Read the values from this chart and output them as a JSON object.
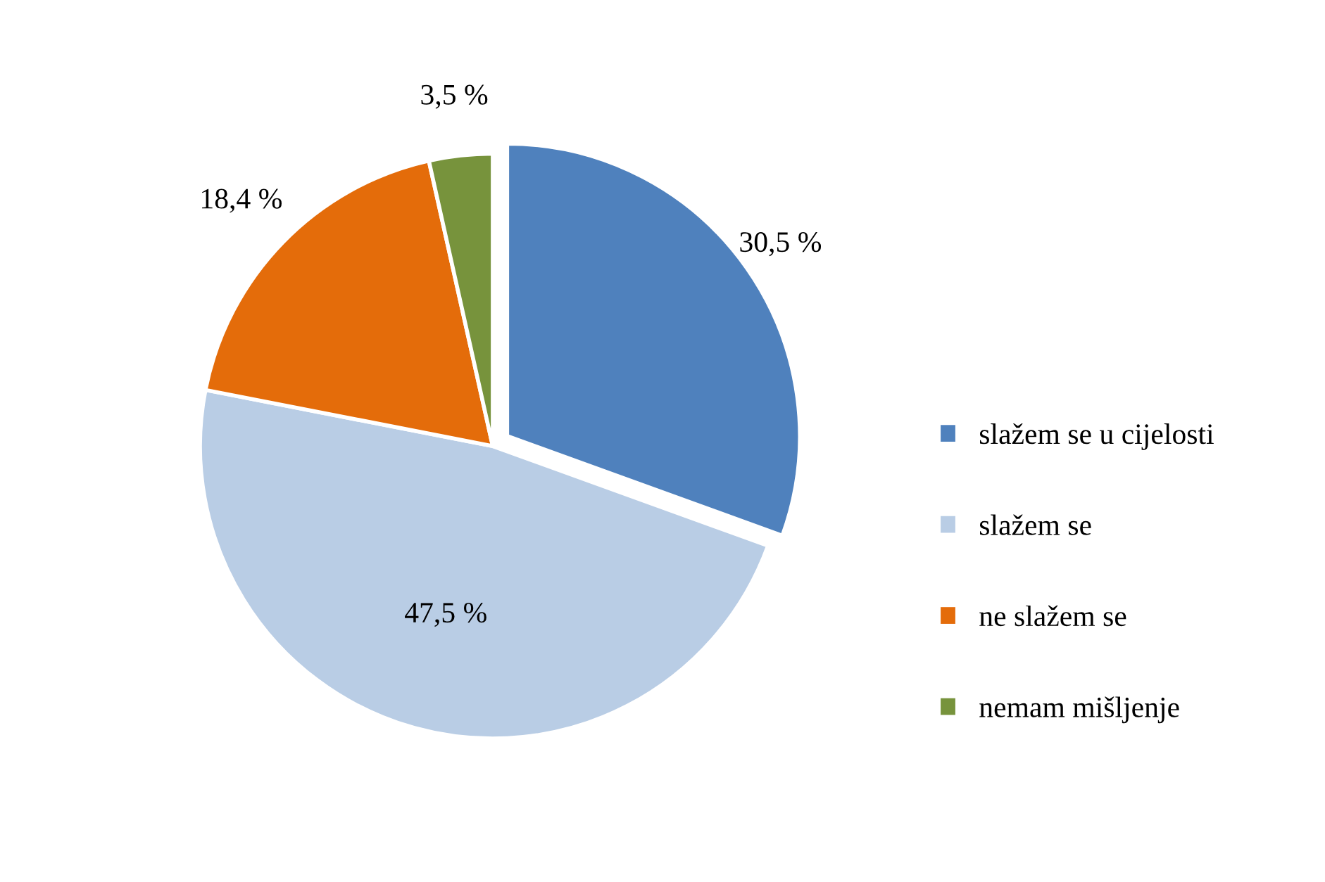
{
  "chart_data": {
    "type": "pie",
    "categories": [
      "slažem se u cijelosti",
      "slažem se",
      "ne slažem se",
      "nemam mišljenje"
    ],
    "values": [
      30.5,
      47.5,
      18.4,
      3.5
    ],
    "colors": [
      "#4f81bd",
      "#b9cde5",
      "#e46c0a",
      "#77933c"
    ],
    "value_labels": [
      "30,5 %",
      "47,5 %",
      "18,4 %",
      "3,5 %"
    ],
    "legend": "right"
  }
}
